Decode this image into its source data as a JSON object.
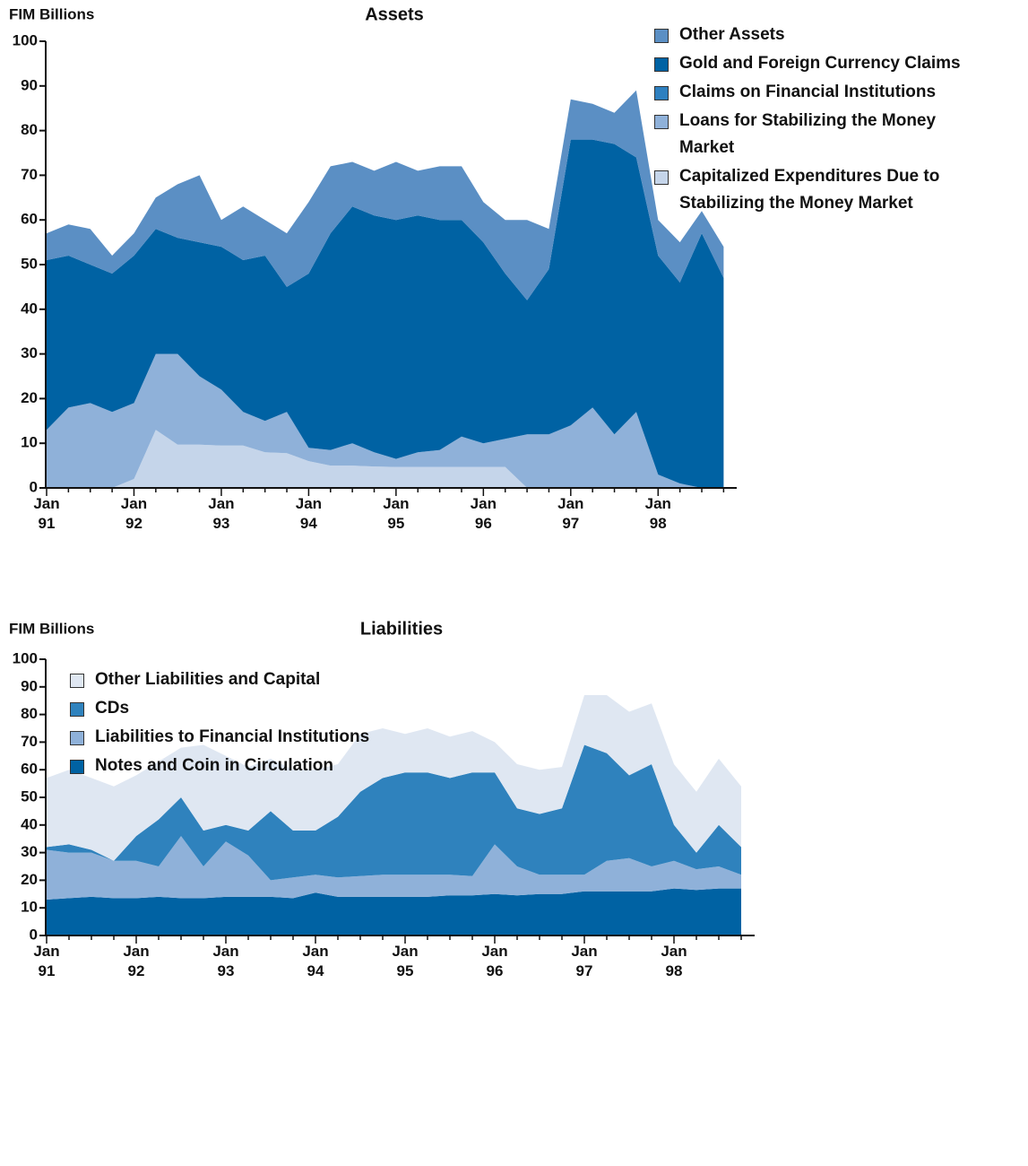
{
  "chart_data": [
    {
      "type": "area",
      "stacked": true,
      "title": "Assets",
      "y_label": "FIM Billions",
      "categories": [
        "Jan 91",
        null,
        null,
        null,
        "Jan 92",
        null,
        null,
        null,
        "Jan 93",
        null,
        null,
        null,
        "Jan 94",
        null,
        null,
        null,
        "Jan 95",
        null,
        null,
        null,
        "Jan 96",
        null,
        null,
        null,
        "Jan 97",
        null,
        null,
        null,
        "Jan 98",
        null,
        null,
        null
      ],
      "series": [
        {
          "name": "Other Assets",
          "color": "#5b8fc4",
          "values": [
            6,
            7,
            8,
            4,
            5,
            7,
            12,
            15,
            6,
            12,
            8,
            12,
            16,
            15,
            10,
            10,
            13,
            10,
            12,
            12,
            9,
            12,
            18,
            9,
            9,
            8,
            7,
            15,
            8,
            9,
            5,
            7
          ]
        },
        {
          "name": "Gold and Foreign Currency Claims",
          "color": "#0062a3",
          "values": [
            38,
            34,
            31,
            31,
            33,
            28,
            26,
            30,
            32,
            34,
            37,
            28,
            39,
            48.5,
            53,
            53,
            53.5,
            53,
            51.5,
            48.5,
            45,
            37,
            30,
            37,
            64,
            60,
            65,
            57,
            49,
            45,
            57,
            47
          ]
        },
        {
          "name": "Claims on Financial Institutions",
          "color": "#2e80c0",
          "values": [
            0,
            0,
            0,
            0,
            0,
            0,
            0,
            0,
            0,
            0,
            0,
            0,
            0,
            0,
            0,
            0,
            0,
            0,
            0,
            0,
            0,
            0,
            0,
            0,
            0,
            0,
            0,
            0,
            0,
            0,
            0,
            0
          ]
        },
        {
          "name": "Loans for Stabilizing the Money Market",
          "color": "#8fb1d9",
          "values": [
            13,
            18,
            19,
            17,
            17,
            17,
            20.3,
            15.3,
            12.5,
            7.5,
            7,
            9.2,
            3,
            3.5,
            5,
            3.2,
            1.8,
            3.3,
            3.8,
            6.8,
            5.3,
            6.3,
            12,
            12,
            14,
            18,
            12,
            17,
            3,
            1,
            0,
            0
          ]
        },
        {
          "name": "Capitalized Expenditures Due to Stabilizing the Money Market",
          "color": "#c5d5ea",
          "values": [
            0,
            0,
            0,
            0,
            2,
            13,
            9.7,
            9.7,
            9.5,
            9.5,
            8,
            7.8,
            6,
            5,
            5,
            4.8,
            4.7,
            4.7,
            4.7,
            4.7,
            4.7,
            4.7,
            0,
            0,
            0,
            0,
            0,
            0,
            0,
            0,
            0,
            0
          ]
        }
      ],
      "ylim": [
        0,
        100
      ],
      "yticks": [
        0,
        10,
        20,
        30,
        40,
        50,
        60,
        70,
        80,
        90,
        100
      ],
      "legend": "upper right"
    },
    {
      "type": "area",
      "stacked": true,
      "title": "Liabilities",
      "y_label": "FIM Billions",
      "categories": [
        "Jan 91",
        null,
        null,
        null,
        "Jan 92",
        null,
        null,
        null,
        "Jan 93",
        null,
        null,
        null,
        "Jan 94",
        null,
        null,
        null,
        "Jan 95",
        null,
        null,
        null,
        "Jan 96",
        null,
        null,
        null,
        "Jan 97",
        null,
        null,
        null,
        "Jan 98",
        null,
        null,
        null
      ],
      "series": [
        {
          "name": "Other Liabilities and Capital",
          "color": "#dfe7f2",
          "values": [
            25,
            27,
            26,
            27,
            22,
            21,
            18,
            31,
            25,
            23,
            19,
            22,
            22,
            19,
            21,
            18,
            14,
            16,
            15,
            15,
            11,
            16,
            16,
            15,
            18,
            21,
            23,
            22,
            22,
            22,
            24,
            22
          ]
        },
        {
          "name": "CDs",
          "color": "#2f82bd",
          "values": [
            1,
            3,
            1,
            0,
            9,
            17,
            14,
            13,
            6,
            9,
            25,
            17,
            16,
            22,
            30.5,
            35,
            37,
            37,
            35,
            37.5,
            26,
            21,
            22,
            24,
            47,
            39,
            30,
            37,
            13,
            6,
            15,
            10
          ]
        },
        {
          "name": "Liabilities to Financial Institutions",
          "color": "#8fb1d9",
          "values": [
            18,
            16.5,
            16,
            13.5,
            13.5,
            11,
            22.5,
            11.5,
            20,
            15,
            6,
            7.5,
            6.5,
            7,
            7.5,
            8,
            8,
            8,
            7.5,
            7,
            18,
            10.5,
            7,
            7,
            6,
            11,
            12,
            9,
            10,
            7.5,
            8,
            5
          ]
        },
        {
          "name": "Notes and Coin in Circulation",
          "color": "#0062a3",
          "values": [
            13,
            13.5,
            14,
            13.5,
            13.5,
            14,
            13.5,
            13.5,
            14,
            14,
            14,
            13.5,
            15.5,
            14,
            14,
            14,
            14,
            14,
            14.5,
            14.5,
            15,
            14.5,
            15,
            15,
            16,
            16,
            16,
            16,
            17,
            16.5,
            17,
            17
          ]
        }
      ],
      "ylim": [
        0,
        100
      ],
      "yticks": [
        0,
        10,
        20,
        30,
        40,
        50,
        60,
        70,
        80,
        90,
        100
      ],
      "legend": "upper left"
    }
  ]
}
